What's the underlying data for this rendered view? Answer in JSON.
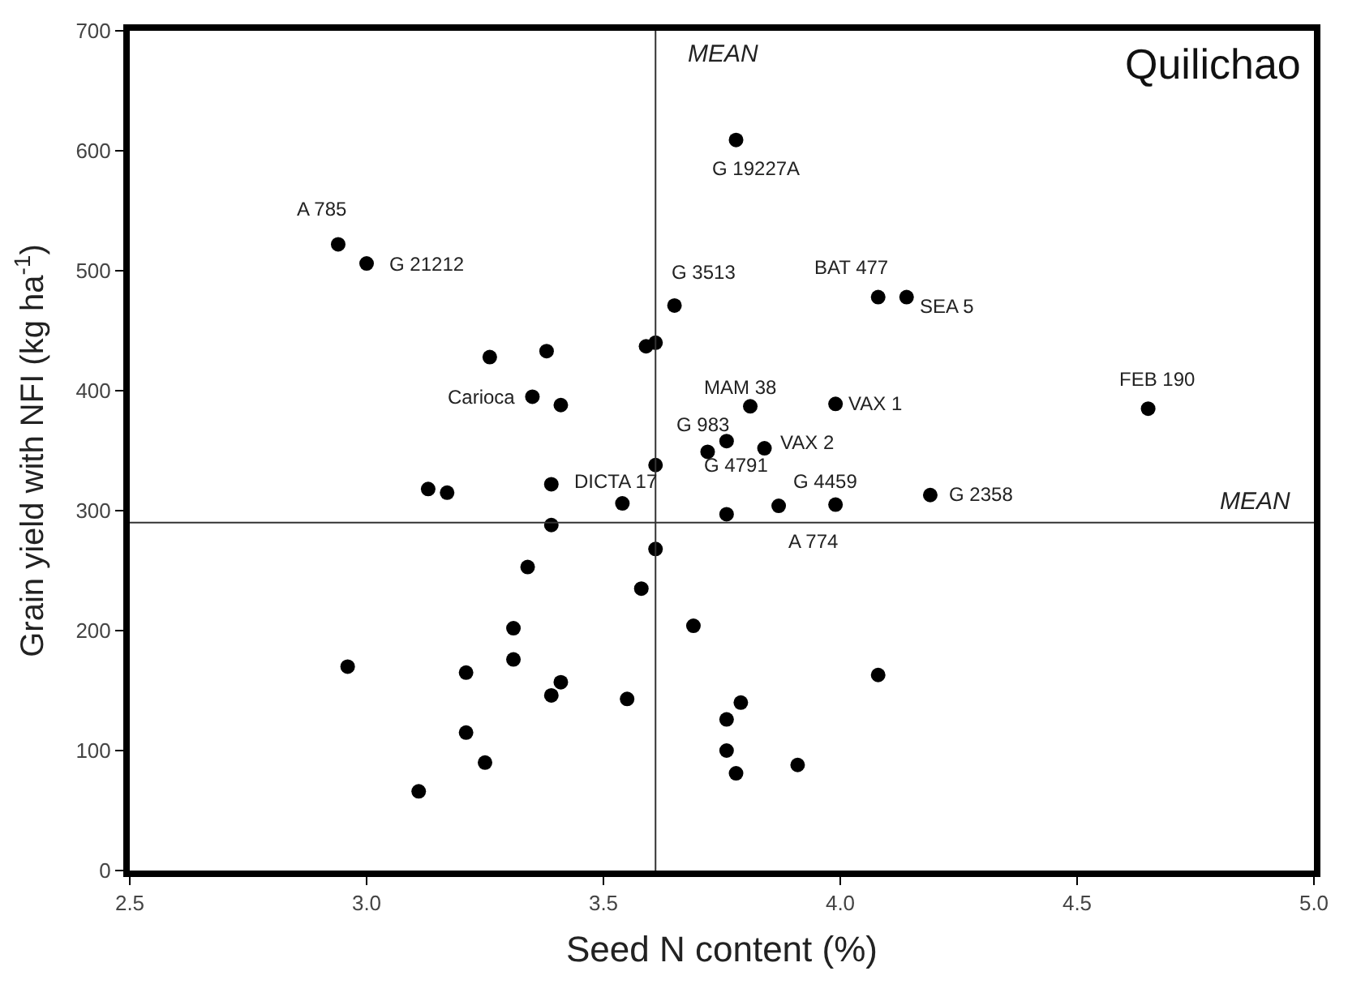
{
  "chart_data": {
    "type": "scatter",
    "title": "Quilichao",
    "xlabel": "Seed N content (%)",
    "ylabel": "Grain yield with NFI (kg ha$^{-1}$)",
    "x": [
      2.96,
      3.11,
      3.21,
      3.21,
      3.25,
      3.31,
      3.31,
      3.34,
      3.39,
      3.39,
      3.41,
      3.55,
      3.58,
      3.61,
      2.94,
      3.0,
      3.26,
      3.38,
      3.35,
      3.41,
      3.13,
      3.17,
      3.39,
      3.54,
      3.78,
      3.65,
      4.08,
      4.14,
      3.59,
      3.61,
      3.81,
      3.99,
      4.65,
      3.76,
      3.84,
      3.72,
      3.61,
      3.76,
      3.87,
      3.99,
      4.19,
      3.69,
      4.08,
      3.79,
      3.76,
      3.76,
      3.78,
      3.91
    ],
    "series": [
      {
        "color": "#000000",
        "values": [
          170,
          66,
          115,
          165,
          90,
          202,
          176,
          253,
          288,
          146,
          157,
          143,
          235,
          268,
          522,
          506,
          428,
          433,
          395,
          388,
          318,
          315,
          322,
          306,
          609,
          471,
          478,
          478,
          437,
          440,
          387,
          389,
          385,
          358,
          352,
          349,
          338,
          297,
          304,
          305,
          313,
          204,
          163,
          140,
          126,
          100,
          81,
          88
        ]
      }
    ],
    "xlim": [
      2.5,
      5.0
    ],
    "xticks": [
      2.5,
      {
        "value": 3,
        "label": "3.0"
      },
      3.5,
      {
        "value": 4,
        "label": "4.0"
      },
      4.5,
      {
        "value": 5,
        "label": "5.0"
      }
    ],
    "ylim": [
      0,
      700
    ],
    "yticks": [
      0,
      100,
      200,
      300,
      400,
      500,
      600,
      700
    ],
    "ref_lines": [
      {
        "axis": "x",
        "value": 3.61,
        "label": "MEAN"
      },
      {
        "axis": "y",
        "value": 290,
        "label": "MEAN"
      }
    ],
    "annotations": [
      {
        "text": "A 785",
        "x": 2.94,
        "y": 522
      },
      {
        "text": "G 21212",
        "x": 3.0,
        "y": 506
      },
      {
        "text": "Carioca",
        "x": 3.35,
        "y": 395
      },
      {
        "text": "G 19227A",
        "x": 3.78,
        "y": 609
      },
      {
        "text": "G 3513",
        "x": 3.65,
        "y": 471
      },
      {
        "text": "BAT 477",
        "x": 4.08,
        "y": 478
      },
      {
        "text": "SEA 5",
        "x": 4.14,
        "y": 478
      },
      {
        "text": "MAM 38",
        "x": 3.81,
        "y": 387
      },
      {
        "text": "VAX 1",
        "x": 3.99,
        "y": 389
      },
      {
        "text": "FEB 190",
        "x": 4.65,
        "y": 385
      },
      {
        "text": "G 983",
        "x": 3.76,
        "y": 358
      },
      {
        "text": "VAX 2",
        "x": 3.84,
        "y": 352
      },
      {
        "text": "G 4791",
        "x": 3.72,
        "y": 349
      },
      {
        "text": "DICTA 17",
        "x": 3.54,
        "y": 306
      },
      {
        "text": "A 774",
        "x": 3.87,
        "y": 304
      },
      {
        "text": "G 4459",
        "x": 3.99,
        "y": 305
      },
      {
        "text": "G 2358",
        "x": 4.19,
        "y": 313
      }
    ]
  }
}
